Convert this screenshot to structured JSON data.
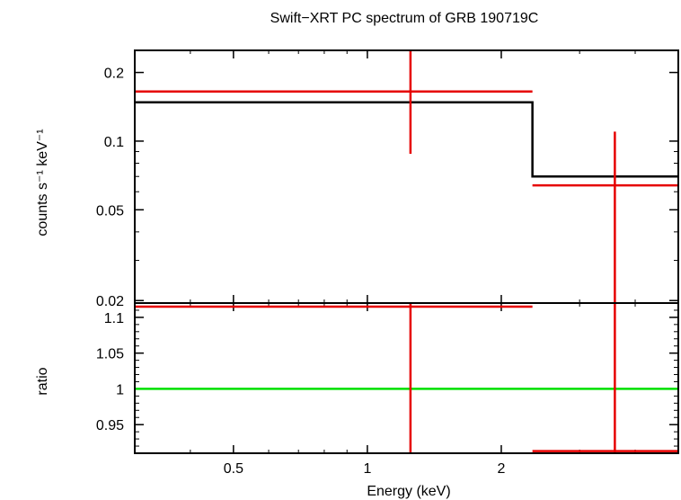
{
  "title": "Swift−XRT PC spectrum of GRB 190719C",
  "colors": {
    "frame": "#000000",
    "data": "#e60000",
    "model": "#000000",
    "unity": "#00e000"
  },
  "chart_data": [
    {
      "panel": "top",
      "type": "scatter",
      "xscale": "log",
      "yscale": "log",
      "xlim": [
        0.3,
        5.0
      ],
      "ylim": [
        0.0195,
        0.25
      ],
      "ylabel": "counts s⁻¹ keV⁻¹",
      "yticks": [
        {
          "value": 0.2,
          "label": "0.2"
        },
        {
          "value": 0.1,
          "label": "0.1"
        },
        {
          "value": 0.05,
          "label": "0.05"
        },
        {
          "value": 0.02,
          "label": "0.02"
        }
      ],
      "data_points": [
        {
          "x": 1.25,
          "x_lo": 0.3,
          "x_hi": 2.35,
          "y": 0.165,
          "y_lo": 0.088,
          "y_hi": 0.25
        },
        {
          "x": 3.6,
          "x_lo": 2.35,
          "x_hi": 5.0,
          "y": 0.064,
          "y_lo": 0.0195,
          "y_hi": 0.11
        }
      ],
      "model_steps": [
        {
          "x_lo": 0.3,
          "x_hi": 2.35,
          "y": 0.148
        },
        {
          "x_lo": 2.35,
          "x_hi": 5.0,
          "y": 0.07
        }
      ]
    },
    {
      "panel": "bottom",
      "type": "scatter",
      "xscale": "log",
      "xlim": [
        0.3,
        5.0
      ],
      "ylim": [
        0.91,
        1.12
      ],
      "xlabel": "Energy (keV)",
      "ylabel": "ratio",
      "xticks": [
        {
          "value": 0.5,
          "label": "0.5"
        },
        {
          "value": 1,
          "label": "1"
        },
        {
          "value": 2,
          "label": "2"
        }
      ],
      "yticks": [
        {
          "value": 1.1,
          "label": "1.1"
        },
        {
          "value": 1.05,
          "label": "1.05"
        },
        {
          "value": 1,
          "label": "1"
        },
        {
          "value": 0.95,
          "label": "0.95"
        }
      ],
      "reference_line": 1.0,
      "data_points": [
        {
          "x": 1.25,
          "x_lo": 0.3,
          "x_hi": 2.35,
          "y": 1.115,
          "y_lo": 0.91,
          "y_hi": 1.12
        },
        {
          "x": 3.6,
          "x_lo": 2.35,
          "x_hi": 5.0,
          "y": 0.913,
          "y_lo": 0.91,
          "y_hi": 1.12
        }
      ]
    }
  ]
}
